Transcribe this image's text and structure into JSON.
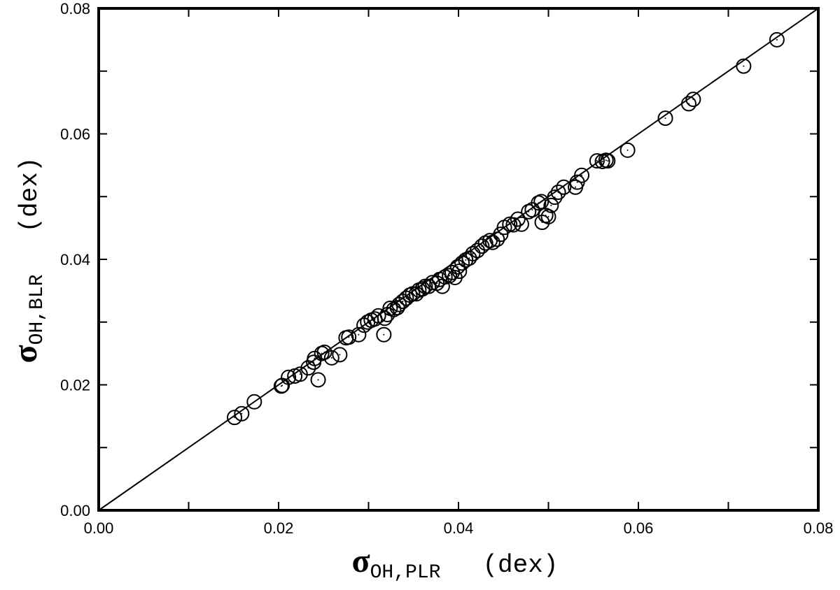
{
  "chart_data": {
    "type": "scatter",
    "xlabel": {
      "symbol": "σ",
      "subscript": "OH,PLR",
      "unit": "(dex)"
    },
    "ylabel": {
      "symbol": "σ",
      "subscript": "OH,BLR",
      "unit": "(dex)"
    },
    "xlim": [
      0,
      0.08
    ],
    "ylim": [
      0,
      0.08
    ],
    "xticks": [
      {
        "value": 0,
        "label": "0.00"
      },
      {
        "value": 0.02,
        "label": "0.02"
      },
      {
        "value": 0.04,
        "label": "0.04"
      },
      {
        "value": 0.06,
        "label": "0.06"
      },
      {
        "value": 0.08,
        "label": "0.08"
      }
    ],
    "yticks": [
      {
        "value": 0,
        "label": "0.00"
      },
      {
        "value": 0.02,
        "label": "0.02"
      },
      {
        "value": 0.04,
        "label": "0.04"
      },
      {
        "value": 0.06,
        "label": "0.06"
      },
      {
        "value": 0.08,
        "label": "0.08"
      }
    ],
    "xticks_minor": [
      0.01,
      0.03,
      0.05,
      0.07
    ],
    "yticks_minor": [
      0.01,
      0.03,
      0.05,
      0.07
    ],
    "reference_line": {
      "x": [
        0,
        0.08
      ],
      "y": [
        0,
        0.08
      ]
    },
    "color": "#000000",
    "x": [
      0.0151,
      0.0159,
      0.0173,
      0.0203,
      0.0204,
      0.0211,
      0.0218,
      0.0224,
      0.0233,
      0.0239,
      0.024,
      0.0244,
      0.0248,
      0.0251,
      0.0259,
      0.0268,
      0.0275,
      0.0278,
      0.0289,
      0.0295,
      0.0299,
      0.0303,
      0.0307,
      0.0311,
      0.0317,
      0.0318,
      0.0321,
      0.0324,
      0.0328,
      0.0332,
      0.0334,
      0.0338,
      0.0342,
      0.0346,
      0.0349,
      0.0353,
      0.0356,
      0.036,
      0.0363,
      0.0367,
      0.0371,
      0.0376,
      0.0379,
      0.0382,
      0.0385,
      0.039,
      0.0393,
      0.0396,
      0.0399,
      0.0401,
      0.0404,
      0.0408,
      0.0412,
      0.0416,
      0.0421,
      0.0426,
      0.043,
      0.0435,
      0.0438,
      0.0443,
      0.0447,
      0.0451,
      0.0457,
      0.0461,
      0.0466,
      0.047,
      0.0478,
      0.0482,
      0.0489,
      0.0492,
      0.0493,
      0.0497,
      0.05,
      0.0503,
      0.0507,
      0.0511,
      0.0517,
      0.053,
      0.0532,
      0.0537,
      0.0554,
      0.056,
      0.0564,
      0.0566,
      0.0588,
      0.063,
      0.0656,
      0.0661,
      0.0717,
      0.0754
    ],
    "values": [
      0.0148,
      0.0154,
      0.0173,
      0.0198,
      0.0199,
      0.0212,
      0.0214,
      0.0217,
      0.0227,
      0.0236,
      0.0242,
      0.0208,
      0.025,
      0.0252,
      0.0243,
      0.0248,
      0.0275,
      0.0276,
      0.028,
      0.0295,
      0.03,
      0.0303,
      0.0305,
      0.031,
      0.028,
      0.0306,
      0.0312,
      0.0322,
      0.032,
      0.0323,
      0.0328,
      0.0333,
      0.0338,
      0.0343,
      0.0345,
      0.0345,
      0.0351,
      0.0353,
      0.0357,
      0.0357,
      0.0363,
      0.0362,
      0.0368,
      0.0357,
      0.0372,
      0.0374,
      0.0379,
      0.0371,
      0.0388,
      0.0381,
      0.0394,
      0.0399,
      0.0402,
      0.0409,
      0.0414,
      0.0421,
      0.0426,
      0.043,
      0.0427,
      0.0432,
      0.044,
      0.0451,
      0.0456,
      0.0455,
      0.0464,
      0.0456,
      0.0476,
      0.0479,
      0.049,
      0.0492,
      0.0459,
      0.047,
      0.0468,
      0.0486,
      0.0499,
      0.0507,
      0.0515,
      0.0515,
      0.0523,
      0.0534,
      0.0557,
      0.0556,
      0.0558,
      0.0557,
      0.0574,
      0.0625,
      0.0648,
      0.0655,
      0.0708,
      0.075
    ]
  }
}
